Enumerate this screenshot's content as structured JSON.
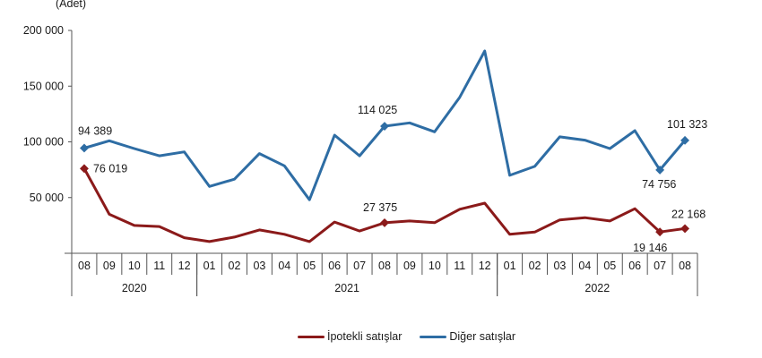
{
  "chart_data": {
    "type": "line",
    "title": "",
    "unit_label": "(Adet)",
    "xlabel": "",
    "ylabel": "(Adet)",
    "ylim": [
      0,
      200000
    ],
    "yticks": [
      0,
      50000,
      100000,
      150000,
      200000
    ],
    "ytick_labels": [
      "",
      "50 000",
      "100 000",
      "150 000",
      "200 000"
    ],
    "grid": false,
    "legend_position": "bottom",
    "categories": [
      "08",
      "09",
      "10",
      "11",
      "12",
      "01",
      "02",
      "03",
      "04",
      "05",
      "06",
      "07",
      "08",
      "09",
      "10",
      "11",
      "12",
      "01",
      "02",
      "03",
      "04",
      "05",
      "06",
      "07",
      "08"
    ],
    "year_groups": [
      {
        "label": "2020",
        "start": 0,
        "end": 4
      },
      {
        "label": "2021",
        "start": 5,
        "end": 16
      },
      {
        "label": "2022",
        "start": 17,
        "end": 24
      }
    ],
    "series": [
      {
        "name": "İpotekli satışlar",
        "color": "#8b1a1a",
        "values": [
          76019,
          35000,
          25000,
          24000,
          14000,
          10500,
          14500,
          21000,
          17000,
          10500,
          28000,
          20000,
          27375,
          29000,
          27500,
          39500,
          45000,
          17000,
          19000,
          30000,
          32000,
          29000,
          40000,
          19146,
          22168
        ],
        "labeled_points": [
          {
            "index": 0,
            "text": "76 019",
            "dx": 10,
            "dy": 4
          },
          {
            "index": 12,
            "text": "27 375",
            "dx": -24,
            "dy": -13
          },
          {
            "index": 23,
            "text": "19 146",
            "dx": -30,
            "dy": 22
          },
          {
            "index": 24,
            "text": "22 168",
            "dx": -15,
            "dy": -12
          }
        ]
      },
      {
        "name": "Diğer satışlar",
        "color": "#2e6da4",
        "values": [
          94389,
          101000,
          94000,
          87500,
          91000,
          60000,
          66500,
          89500,
          78500,
          48000,
          106000,
          87500,
          114025,
          117000,
          109000,
          140000,
          181500,
          70000,
          78000,
          104500,
          101500,
          94000,
          110000,
          74756,
          101323
        ],
        "labeled_points": [
          {
            "index": 0,
            "text": "94 389",
            "dx": -7,
            "dy": -15
          },
          {
            "index": 12,
            "text": "114 025",
            "dx": -30,
            "dy": -14
          },
          {
            "index": 23,
            "text": "74 756",
            "dx": -20,
            "dy": 20
          },
          {
            "index": 24,
            "text": "101 323",
            "dx": -20,
            "dy": -14
          }
        ]
      }
    ]
  },
  "legend": {
    "items": [
      {
        "label": "İpotekli satışlar",
        "color": "#8b1a1a"
      },
      {
        "label": "Diğer satışlar",
        "color": "#2e6da4"
      }
    ]
  }
}
